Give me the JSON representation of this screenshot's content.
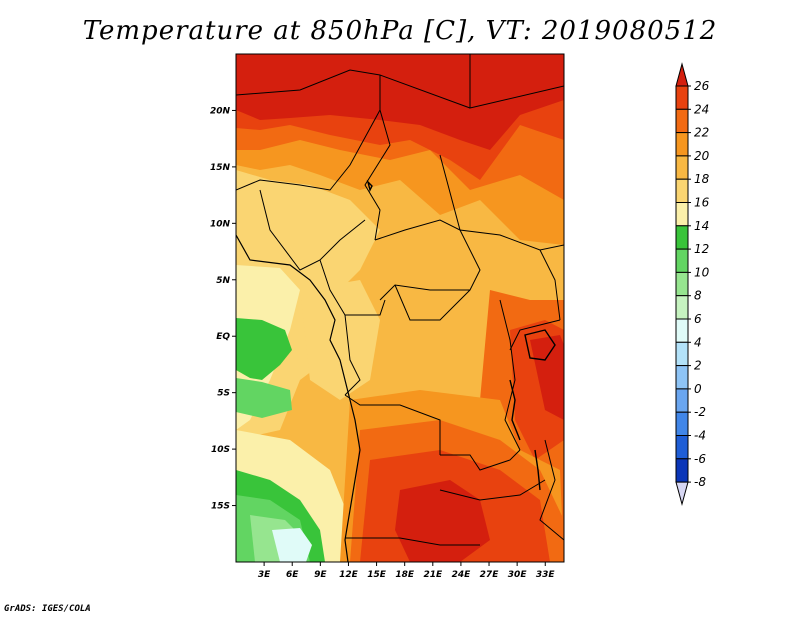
{
  "title": "Temperature at 850hPa [C], VT: 2019080512",
  "credit": "GrADS: IGES/COLA",
  "map": {
    "variable": "Temperature at 850hPa",
    "unit": "C",
    "valid_time": "2019080512",
    "lon_range": [
      0,
      35
    ],
    "lat_range": [
      -20,
      25
    ],
    "lat_ticks": [
      {
        "value": 20,
        "label": "20N"
      },
      {
        "value": 15,
        "label": "15N"
      },
      {
        "value": 10,
        "label": "10N"
      },
      {
        "value": 5,
        "label": "5N"
      },
      {
        "value": 0,
        "label": "EQ"
      },
      {
        "value": -5,
        "label": "5S"
      },
      {
        "value": -10,
        "label": "10S"
      },
      {
        "value": -15,
        "label": "15S"
      }
    ],
    "lon_ticks": [
      {
        "value": 3,
        "label": "3E"
      },
      {
        "value": 6,
        "label": "6E"
      },
      {
        "value": 9,
        "label": "9E"
      },
      {
        "value": 12,
        "label": "12E"
      },
      {
        "value": 15,
        "label": "15E"
      },
      {
        "value": 18,
        "label": "18E"
      },
      {
        "value": 21,
        "label": "21E"
      },
      {
        "value": 24,
        "label": "24E"
      },
      {
        "value": 27,
        "label": "27E"
      },
      {
        "value": 30,
        "label": "30E"
      },
      {
        "value": 33,
        "label": "33E"
      }
    ]
  },
  "colorbar": {
    "levels": [
      {
        "label": "26",
        "color": "#d41f0e"
      },
      {
        "label": "24",
        "color": "#e8420f"
      },
      {
        "label": "22",
        "color": "#f26a12"
      },
      {
        "label": "20",
        "color": "#f6961f"
      },
      {
        "label": "18",
        "color": "#f8b843"
      },
      {
        "label": "16",
        "color": "#fad572"
      },
      {
        "label": "14",
        "color": "#fbf0aa"
      },
      {
        "label": "12",
        "color": "#39c43a"
      },
      {
        "label": "10",
        "color": "#62d562"
      },
      {
        "label": "8",
        "color": "#96e58f"
      },
      {
        "label": "6",
        "color": "#c6f3c0"
      },
      {
        "label": "4",
        "color": "#e0fbf8"
      },
      {
        "label": "2",
        "color": "#b3e2f9"
      },
      {
        "label": "0",
        "color": "#8ec4f6"
      },
      {
        "label": "-2",
        "color": "#6aa6f0"
      },
      {
        "label": "-4",
        "color": "#4186e8"
      },
      {
        "label": "-6",
        "color": "#1f5ed6"
      },
      {
        "label": "-8",
        "color": "#0b36b8"
      }
    ],
    "top_color": "#d41f0e",
    "bottom_color": "#d7d7f3"
  }
}
